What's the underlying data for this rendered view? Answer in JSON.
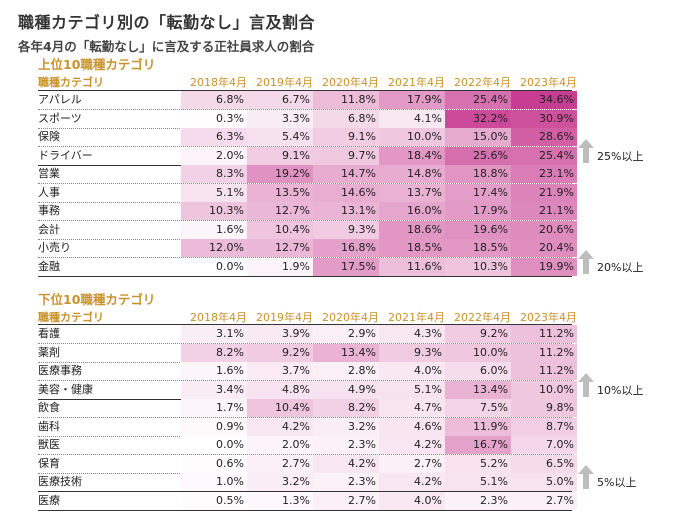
{
  "title": "職種カテゴリ別の「転勤なし」言及割合",
  "subtitle": "各年4月の「転勤なし」に言及する正社員求人の割合",
  "years": [
    "2018年4月",
    "2019年4月",
    "2020年4月",
    "2021年4月",
    "2022年4月",
    "2023年4月"
  ],
  "colors": {
    "accent": "#c8922d",
    "max_cell": "#c83c91"
  },
  "chart_data": [
    {
      "type": "heatmap",
      "title": "上位10職種カテゴリ",
      "row_header": "職種カテゴリ",
      "columns": [
        "2018年4月",
        "2019年4月",
        "2020年4月",
        "2021年4月",
        "2022年4月",
        "2023年4月"
      ],
      "rows": [
        {
          "label": "アパレル",
          "values": [
            6.8,
            6.7,
            11.8,
            17.9,
            25.4,
            34.6
          ]
        },
        {
          "label": "スポーツ",
          "values": [
            0.3,
            3.3,
            6.8,
            4.1,
            32.2,
            30.9
          ]
        },
        {
          "label": "保険",
          "values": [
            6.3,
            5.4,
            9.1,
            10.0,
            15.0,
            28.6
          ]
        },
        {
          "label": "ドライバー",
          "values": [
            2.0,
            9.1,
            9.7,
            18.4,
            25.6,
            25.4
          ]
        },
        {
          "label": "営業",
          "values": [
            8.3,
            19.2,
            14.7,
            14.8,
            18.8,
            23.1
          ]
        },
        {
          "label": "人事",
          "values": [
            5.1,
            13.5,
            14.6,
            13.7,
            17.4,
            21.9
          ]
        },
        {
          "label": "事務",
          "values": [
            10.3,
            12.7,
            13.1,
            16.0,
            17.9,
            21.1
          ]
        },
        {
          "label": "会計",
          "values": [
            1.6,
            10.4,
            9.3,
            18.6,
            19.6,
            20.6
          ]
        },
        {
          "label": "小売り",
          "values": [
            12.0,
            12.7,
            16.8,
            18.5,
            18.5,
            20.4
          ]
        },
        {
          "label": "金融",
          "values": [
            0.0,
            1.9,
            17.5,
            11.6,
            10.3,
            19.9
          ]
        }
      ],
      "groups": [
        {
          "label": "25%以上",
          "end_row": 3
        },
        {
          "label": "20%以上",
          "end_row": 9
        }
      ],
      "unit": "%",
      "scale_max": 34.6
    },
    {
      "type": "heatmap",
      "title": "下位10職種カテゴリ",
      "row_header": "職種カテゴリ",
      "columns": [
        "2018年4月",
        "2019年4月",
        "2020年4月",
        "2021年4月",
        "2022年4月",
        "2023年4月"
      ],
      "rows": [
        {
          "label": "看護",
          "values": [
            3.1,
            3.9,
            2.9,
            4.3,
            9.2,
            11.2
          ]
        },
        {
          "label": "薬剤",
          "values": [
            8.2,
            9.2,
            13.4,
            9.3,
            10.0,
            11.2
          ]
        },
        {
          "label": "医療事務",
          "values": [
            1.6,
            3.7,
            2.8,
            4.0,
            6.0,
            11.2
          ]
        },
        {
          "label": "美容・健康",
          "values": [
            3.4,
            4.8,
            4.9,
            5.1,
            13.4,
            10.0
          ]
        },
        {
          "label": "飲食",
          "values": [
            1.7,
            10.4,
            8.2,
            4.7,
            7.5,
            9.8
          ]
        },
        {
          "label": "歯科",
          "values": [
            0.9,
            4.2,
            3.2,
            4.6,
            11.9,
            8.7
          ]
        },
        {
          "label": "獣医",
          "values": [
            0.0,
            2.0,
            2.3,
            4.2,
            16.7,
            7.0
          ]
        },
        {
          "label": "保育",
          "values": [
            0.6,
            2.7,
            4.2,
            2.7,
            5.2,
            6.5
          ]
        },
        {
          "label": "医療技術",
          "values": [
            1.0,
            3.2,
            2.3,
            4.2,
            5.1,
            5.0
          ]
        },
        {
          "label": "医療",
          "values": [
            0.5,
            1.3,
            2.7,
            4.0,
            2.3,
            2.7
          ]
        }
      ],
      "groups": [
        {
          "label": "10%以上",
          "end_row": 3
        },
        {
          "label": "5%以上",
          "end_row": 8
        }
      ],
      "unit": "%",
      "scale_max": 34.6
    }
  ]
}
